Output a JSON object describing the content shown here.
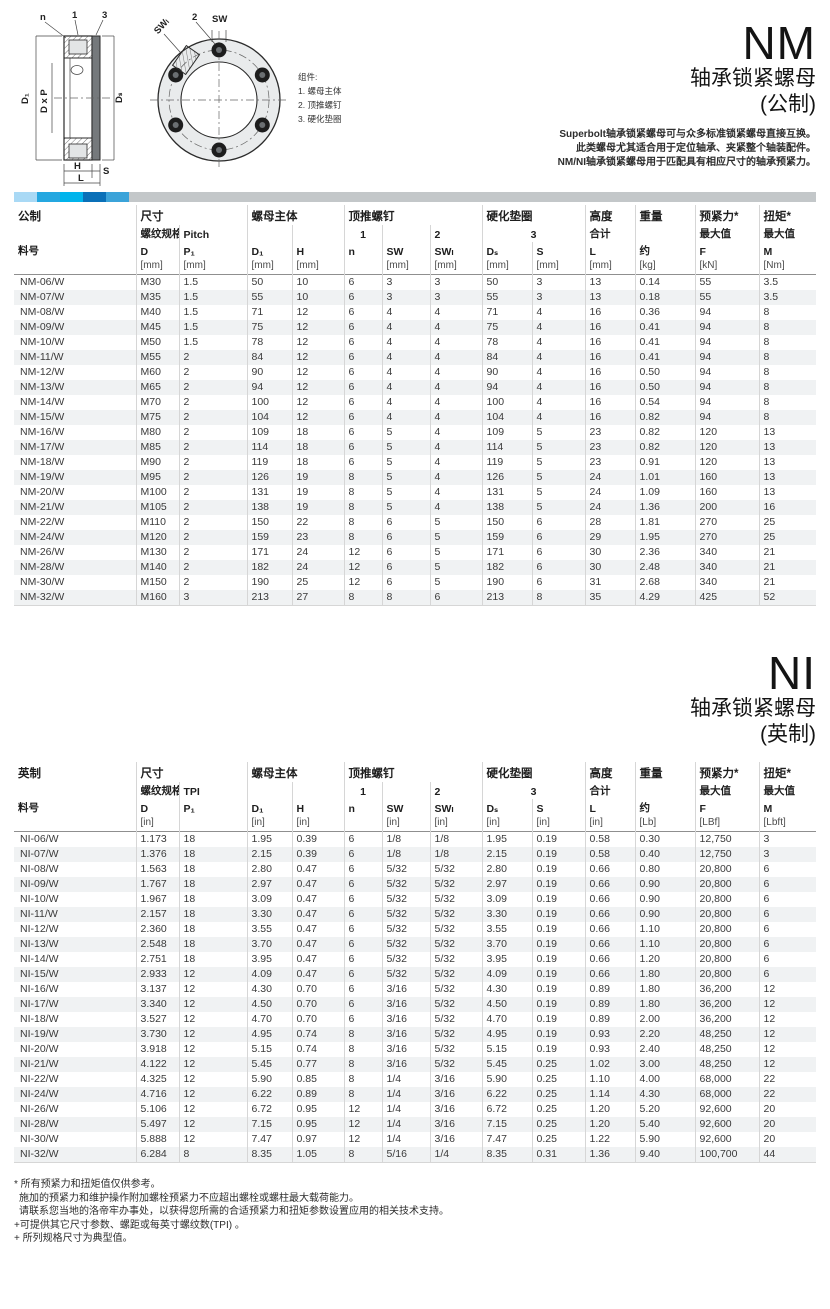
{
  "brand_bar": {
    "segments": [
      "#a9d9f5",
      "#25a7e0",
      "#00b4ec",
      "#0a70b8",
      "#3ba3d9"
    ],
    "rest_color": "#c3c7c9"
  },
  "nm_section": {
    "title": "NM",
    "subtitle_line1": "轴承锁紧螺母",
    "subtitle_line2": "(公制)",
    "description": [
      "Superbolt轴承锁紧螺母可与众多标准锁紧螺母直接互换。",
      "此类螺母尤其适合用于定位轴承、夹紧整个轴装配件。",
      "NM/NI轴承锁紧螺母用于匹配具有相应尺寸的轴承预紧力。"
    ]
  },
  "ni_section": {
    "title": "NI",
    "subtitle_line1": "轴承锁紧螺母",
    "subtitle_line2": "(英制)"
  },
  "diagram": {
    "labels": {
      "n": "n",
      "one": "1",
      "three": "3",
      "swl": "SWₗ",
      "two": "2",
      "sw": "SW",
      "d1": "D₁",
      "dxp": "D x P",
      "ds": "Dₛ",
      "h": "H",
      "s": "S",
      "l": "L"
    },
    "legend_title": "组件:",
    "legend_items": [
      "1. 螺母主体",
      "2. 顶推螺钉",
      "3. 硬化垫圈"
    ]
  },
  "metric_table": {
    "corner_label": "公制",
    "part_no_label": "料号",
    "groups": {
      "size": "尺寸",
      "body": "螺母主体",
      "jack": "顶推螺钉",
      "washer": "硬化垫圈",
      "height": "高度",
      "weight": "重量",
      "preload": "预紧力*",
      "torque": "扭矩*"
    },
    "subrow": {
      "thread": "螺纹规格",
      "pitch": "Pitch",
      "one": "1",
      "two": "2",
      "three": "3",
      "total": "合计",
      "max_preload": "最大值",
      "max_torque": "最大值"
    },
    "col_labels": [
      "D",
      "P₁",
      "D₁",
      "H",
      "n",
      "SW",
      "SWₗ",
      "Dₛ",
      "S",
      "L",
      "约",
      "F",
      "M"
    ],
    "units": [
      "[mm]",
      "[mm]",
      "[mm]",
      "[mm]",
      "",
      "[mm]",
      "[mm]",
      "[mm]",
      "[mm]",
      "[mm]",
      "[kg]",
      "[kN]",
      "[Nm]"
    ],
    "rows": [
      [
        "NM-06/W",
        "M30",
        "1.5",
        "50",
        "10",
        "6",
        "3",
        "3",
        "50",
        "3",
        "13",
        "0.14",
        "55",
        "3.5"
      ],
      [
        "NM-07/W",
        "M35",
        "1.5",
        "55",
        "10",
        "6",
        "3",
        "3",
        "55",
        "3",
        "13",
        "0.18",
        "55",
        "3.5"
      ],
      [
        "NM-08/W",
        "M40",
        "1.5",
        "71",
        "12",
        "6",
        "4",
        "4",
        "71",
        "4",
        "16",
        "0.36",
        "94",
        "8"
      ],
      [
        "NM-09/W",
        "M45",
        "1.5",
        "75",
        "12",
        "6",
        "4",
        "4",
        "75",
        "4",
        "16",
        "0.41",
        "94",
        "8"
      ],
      [
        "NM-10/W",
        "M50",
        "1.5",
        "78",
        "12",
        "6",
        "4",
        "4",
        "78",
        "4",
        "16",
        "0.41",
        "94",
        "8"
      ],
      [
        "NM-11/W",
        "M55",
        "2",
        "84",
        "12",
        "6",
        "4",
        "4",
        "84",
        "4",
        "16",
        "0.41",
        "94",
        "8"
      ],
      [
        "NM-12/W",
        "M60",
        "2",
        "90",
        "12",
        "6",
        "4",
        "4",
        "90",
        "4",
        "16",
        "0.50",
        "94",
        "8"
      ],
      [
        "NM-13/W",
        "M65",
        "2",
        "94",
        "12",
        "6",
        "4",
        "4",
        "94",
        "4",
        "16",
        "0.50",
        "94",
        "8"
      ],
      [
        "NM-14/W",
        "M70",
        "2",
        "100",
        "12",
        "6",
        "4",
        "4",
        "100",
        "4",
        "16",
        "0.54",
        "94",
        "8"
      ],
      [
        "NM-15/W",
        "M75",
        "2",
        "104",
        "12",
        "6",
        "4",
        "4",
        "104",
        "4",
        "16",
        "0.82",
        "94",
        "8"
      ],
      [
        "NM-16/W",
        "M80",
        "2",
        "109",
        "18",
        "6",
        "5",
        "4",
        "109",
        "5",
        "23",
        "0.82",
        "120",
        "13"
      ],
      [
        "NM-17/W",
        "M85",
        "2",
        "114",
        "18",
        "6",
        "5",
        "4",
        "114",
        "5",
        "23",
        "0.82",
        "120",
        "13"
      ],
      [
        "NM-18/W",
        "M90",
        "2",
        "119",
        "18",
        "6",
        "5",
        "4",
        "119",
        "5",
        "23",
        "0.91",
        "120",
        "13"
      ],
      [
        "NM-19/W",
        "M95",
        "2",
        "126",
        "19",
        "8",
        "5",
        "4",
        "126",
        "5",
        "24",
        "1.01",
        "160",
        "13"
      ],
      [
        "NM-20/W",
        "M100",
        "2",
        "131",
        "19",
        "8",
        "5",
        "4",
        "131",
        "5",
        "24",
        "1.09",
        "160",
        "13"
      ],
      [
        "NM-21/W",
        "M105",
        "2",
        "138",
        "19",
        "8",
        "5",
        "4",
        "138",
        "5",
        "24",
        "1.36",
        "200",
        "16"
      ],
      [
        "NM-22/W",
        "M110",
        "2",
        "150",
        "22",
        "8",
        "6",
        "5",
        "150",
        "6",
        "28",
        "1.81",
        "270",
        "25"
      ],
      [
        "NM-24/W",
        "M120",
        "2",
        "159",
        "23",
        "8",
        "6",
        "5",
        "159",
        "6",
        "29",
        "1.95",
        "270",
        "25"
      ],
      [
        "NM-26/W",
        "M130",
        "2",
        "171",
        "24",
        "12",
        "6",
        "5",
        "171",
        "6",
        "30",
        "2.36",
        "340",
        "21"
      ],
      [
        "NM-28/W",
        "M140",
        "2",
        "182",
        "24",
        "12",
        "6",
        "5",
        "182",
        "6",
        "30",
        "2.48",
        "340",
        "21"
      ],
      [
        "NM-30/W",
        "M150",
        "2",
        "190",
        "25",
        "12",
        "6",
        "5",
        "190",
        "6",
        "31",
        "2.68",
        "340",
        "21"
      ],
      [
        "NM-32/W",
        "M160",
        "3",
        "213",
        "27",
        "8",
        "8",
        "6",
        "213",
        "8",
        "35",
        "4.29",
        "425",
        "52"
      ]
    ]
  },
  "imperial_table": {
    "corner_label": "英制",
    "part_no_label": "料号",
    "groups": {
      "size": "尺寸",
      "body": "螺母主体",
      "jack": "顶推螺钉",
      "washer": "硬化垫圈",
      "height": "高度",
      "weight": "重量",
      "preload": "预紧力*",
      "torque": "扭矩*"
    },
    "subrow": {
      "thread": "螺纹规格",
      "pitch": "TPI",
      "one": "1",
      "two": "2",
      "three": "3",
      "total": "合计",
      "max_preload": "最大值",
      "max_torque": "最大值"
    },
    "col_labels": [
      "D",
      "P₁",
      "D₁",
      "H",
      "n",
      "SW",
      "SWₗ",
      "Dₛ",
      "S",
      "L",
      "约",
      "F",
      "M"
    ],
    "units": [
      "[in]",
      "",
      "[in]",
      "[in]",
      "",
      "[in]",
      "[in]",
      "[in]",
      "[in]",
      "[in]",
      "[Lb]",
      "[LBf]",
      "[Lbft]"
    ],
    "rows": [
      [
        "NI-06/W",
        "1.173",
        "18",
        "1.95",
        "0.39",
        "6",
        "1/8",
        "1/8",
        "1.95",
        "0.19",
        "0.58",
        "0.30",
        "12,750",
        "3"
      ],
      [
        "NI-07/W",
        "1.376",
        "18",
        "2.15",
        "0.39",
        "6",
        "1/8",
        "1/8",
        "2.15",
        "0.19",
        "0.58",
        "0.40",
        "12,750",
        "3"
      ],
      [
        "NI-08/W",
        "1.563",
        "18",
        "2.80",
        "0.47",
        "6",
        "5/32",
        "5/32",
        "2.80",
        "0.19",
        "0.66",
        "0.80",
        "20,800",
        "6"
      ],
      [
        "NI-09/W",
        "1.767",
        "18",
        "2.97",
        "0.47",
        "6",
        "5/32",
        "5/32",
        "2.97",
        "0.19",
        "0.66",
        "0.90",
        "20,800",
        "6"
      ],
      [
        "NI-10/W",
        "1.967",
        "18",
        "3.09",
        "0.47",
        "6",
        "5/32",
        "5/32",
        "3.09",
        "0.19",
        "0.66",
        "0.90",
        "20,800",
        "6"
      ],
      [
        "NI-11/W",
        "2.157",
        "18",
        "3.30",
        "0.47",
        "6",
        "5/32",
        "5/32",
        "3.30",
        "0.19",
        "0.66",
        "0.90",
        "20,800",
        "6"
      ],
      [
        "NI-12/W",
        "2.360",
        "18",
        "3.55",
        "0.47",
        "6",
        "5/32",
        "5/32",
        "3.55",
        "0.19",
        "0.66",
        "1.10",
        "20,800",
        "6"
      ],
      [
        "NI-13/W",
        "2.548",
        "18",
        "3.70",
        "0.47",
        "6",
        "5/32",
        "5/32",
        "3.70",
        "0.19",
        "0.66",
        "1.10",
        "20,800",
        "6"
      ],
      [
        "NI-14/W",
        "2.751",
        "18",
        "3.95",
        "0.47",
        "6",
        "5/32",
        "5/32",
        "3.95",
        "0.19",
        "0.66",
        "1.20",
        "20,800",
        "6"
      ],
      [
        "NI-15/W",
        "2.933",
        "12",
        "4.09",
        "0.47",
        "6",
        "5/32",
        "5/32",
        "4.09",
        "0.19",
        "0.66",
        "1.80",
        "20,800",
        "6"
      ],
      [
        "NI-16/W",
        "3.137",
        "12",
        "4.30",
        "0.70",
        "6",
        "3/16",
        "5/32",
        "4.30",
        "0.19",
        "0.89",
        "1.80",
        "36,200",
        "12"
      ],
      [
        "NI-17/W",
        "3.340",
        "12",
        "4.50",
        "0.70",
        "6",
        "3/16",
        "5/32",
        "4.50",
        "0.19",
        "0.89",
        "1.80",
        "36,200",
        "12"
      ],
      [
        "NI-18/W",
        "3.527",
        "12",
        "4.70",
        "0.70",
        "6",
        "3/16",
        "5/32",
        "4.70",
        "0.19",
        "0.89",
        "2.00",
        "36,200",
        "12"
      ],
      [
        "NI-19/W",
        "3.730",
        "12",
        "4.95",
        "0.74",
        "8",
        "3/16",
        "5/32",
        "4.95",
        "0.19",
        "0.93",
        "2.20",
        "48,250",
        "12"
      ],
      [
        "NI-20/W",
        "3.918",
        "12",
        "5.15",
        "0.74",
        "8",
        "3/16",
        "5/32",
        "5.15",
        "0.19",
        "0.93",
        "2.40",
        "48,250",
        "12"
      ],
      [
        "NI-21/W",
        "4.122",
        "12",
        "5.45",
        "0.77",
        "8",
        "3/16",
        "5/32",
        "5.45",
        "0.25",
        "1.02",
        "3.00",
        "48,250",
        "12"
      ],
      [
        "NI-22/W",
        "4.325",
        "12",
        "5.90",
        "0.85",
        "8",
        "1/4",
        "3/16",
        "5.90",
        "0.25",
        "1.10",
        "4.00",
        "68,000",
        "22"
      ],
      [
        "NI-24/W",
        "4.716",
        "12",
        "6.22",
        "0.89",
        "8",
        "1/4",
        "3/16",
        "6.22",
        "0.25",
        "1.14",
        "4.30",
        "68,000",
        "22"
      ],
      [
        "NI-26/W",
        "5.106",
        "12",
        "6.72",
        "0.95",
        "12",
        "1/4",
        "3/16",
        "6.72",
        "0.25",
        "1.20",
        "5.20",
        "92,600",
        "20"
      ],
      [
        "NI-28/W",
        "5.497",
        "12",
        "7.15",
        "0.95",
        "12",
        "1/4",
        "3/16",
        "7.15",
        "0.25",
        "1.20",
        "5.40",
        "92,600",
        "20"
      ],
      [
        "NI-30/W",
        "5.888",
        "12",
        "7.47",
        "0.97",
        "12",
        "1/4",
        "3/16",
        "7.47",
        "0.25",
        "1.22",
        "5.90",
        "92,600",
        "20"
      ],
      [
        "NI-32/W",
        "6.284",
        "8",
        "8.35",
        "1.05",
        "8",
        "5/16",
        "1/4",
        "8.35",
        "0.31",
        "1.36",
        "9.40",
        "100,700",
        "44"
      ]
    ]
  },
  "footnotes": [
    "* 所有预紧力和扭矩值仅供参考。",
    "施加的预紧力和维护操作附加螺栓预紧力不应超出螺栓或螺柱最大载荷能力。",
    "请联系您当地的洛帝牢办事处，以获得您所需的合适预紧力和扭矩参数设置应用的相关技术支持。",
    "+可提供其它尺寸参数、螺距或每英寸螺纹数(TPI) 。",
    "+ 所列规格尺寸为典型值。"
  ]
}
